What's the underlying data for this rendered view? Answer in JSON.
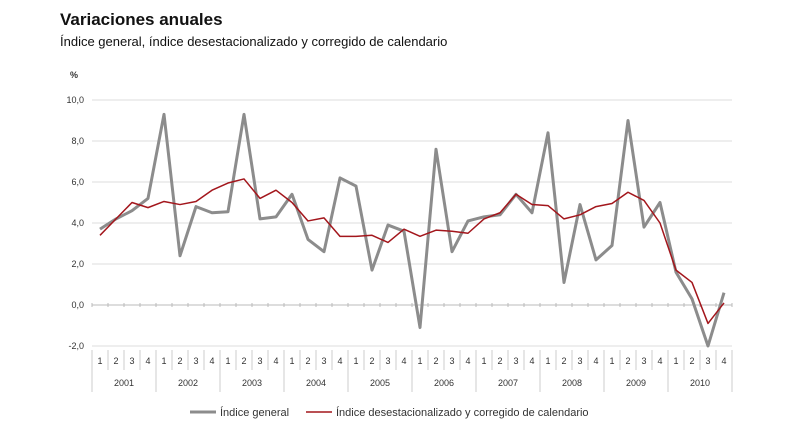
{
  "chart_data": {
    "type": "line",
    "title": "Variaciones anuales",
    "subtitle": "Índice general, índice desestacionalizado y corregido de calendario",
    "ylabel": "%",
    "ylim": [
      -2,
      10
    ],
    "yticks": [
      "-2,0",
      "0,0",
      "2,0",
      "4,0",
      "6,0",
      "8,0",
      "10,0"
    ],
    "years": [
      "2001",
      "2002",
      "2003",
      "2004",
      "2005",
      "2006",
      "2007",
      "2008",
      "2009",
      "2010"
    ],
    "quarters": [
      "1",
      "2",
      "3",
      "4"
    ],
    "grid": true,
    "legend_position": "bottom",
    "series": [
      {
        "name": "Índice general",
        "color": "#8c8c8c",
        "values": [
          3.7,
          4.2,
          4.6,
          5.2,
          9.3,
          2.4,
          4.8,
          4.5,
          4.55,
          9.3,
          4.2,
          4.3,
          5.4,
          3.2,
          2.6,
          6.2,
          5.8,
          1.7,
          3.9,
          3.6,
          -1.1,
          7.6,
          2.6,
          4.1,
          4.3,
          4.4,
          5.4,
          4.5,
          8.4,
          1.1,
          4.9,
          2.2,
          2.9,
          9.0,
          3.8,
          5.0,
          1.6,
          0.3,
          -2.0,
          0.6
        ]
      },
      {
        "name": "Índice desestacionalizado y corregido de calendario",
        "color": "#a3161c",
        "values": [
          3.4,
          4.2,
          5.0,
          4.75,
          5.05,
          4.9,
          5.05,
          5.6,
          5.95,
          6.15,
          5.2,
          5.6,
          5.0,
          4.1,
          4.25,
          3.35,
          3.35,
          3.4,
          3.05,
          3.7,
          3.35,
          3.65,
          3.6,
          3.5,
          4.2,
          4.5,
          5.4,
          4.9,
          4.85,
          4.2,
          4.4,
          4.8,
          4.95,
          5.5,
          5.1,
          4.0,
          1.7,
          1.1,
          -0.9,
          0.1
        ]
      }
    ]
  }
}
